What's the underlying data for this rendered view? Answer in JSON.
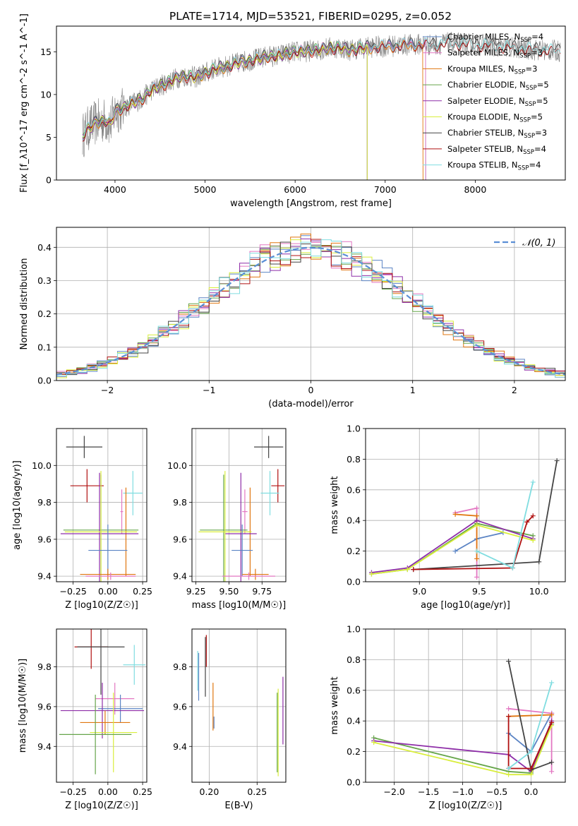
{
  "figure_title": "PLATE=1714, MJD=53521, FIBERID=0295, z=0.052",
  "colors": {
    "Chabrier MILES": "#5b84c4",
    "Salpeter MILES": "#e377c2",
    "Kroupa MILES": "#e0760f",
    "Chabrier ELODIE": "#66a54a",
    "Salpeter ELODIE": "#8e2ea8",
    "Kroupa ELODIE": "#d9ee3c",
    "Chabrier STELIB": "#444444",
    "Salpeter STELIB": "#b01010",
    "Kroupa STELIB": "#80dde0"
  },
  "chart_data": [
    {
      "id": "spectrum",
      "type": "line",
      "title": "PLATE=1714, MJD=53521, FIBERID=0295, z=0.052",
      "xlabel": "wavelength [Angstrom, rest frame]",
      "ylabel": "Flux [f_λ10^-17 erg cm^-2 s^-1 A^-1]",
      "xlim": [
        3350,
        9000
      ],
      "ylim": [
        0,
        18
      ],
      "xticks": [
        4000,
        5000,
        6000,
        7000,
        8000
      ],
      "yticks": [
        0,
        5,
        10,
        15
      ],
      "grid": false,
      "legend": "top-right",
      "data_series": {
        "name": "",
        "color": "#808080",
        "x": [
          3640,
          3700,
          3800,
          3900,
          3950,
          4000,
          4100,
          4200,
          4300,
          4400,
          4500,
          4600,
          4700,
          4800,
          4900,
          5000,
          5100,
          5200,
          5300,
          5400,
          5500,
          5600,
          5700,
          5800,
          5900,
          6000,
          6100,
          6200,
          6300,
          6400,
          6500,
          6600,
          6700,
          6800,
          6900,
          7000,
          7100,
          7200,
          7300,
          7400,
          7500,
          7600,
          7700,
          7800,
          7900,
          8000,
          8100,
          8200,
          8300,
          8400,
          8500,
          8600,
          8700,
          8800,
          8900
        ],
        "y": [
          5.2,
          6.0,
          6.8,
          7.0,
          6.5,
          8.0,
          8.5,
          9.0,
          9.5,
          10.5,
          11.0,
          11.5,
          12.0,
          12.2,
          12.0,
          12.5,
          13.0,
          13.2,
          13.5,
          13.8,
          14.0,
          14.2,
          14.5,
          14.5,
          14.8,
          15.0,
          15.0,
          15.2,
          15.3,
          15.5,
          15.5,
          15.2,
          15.4,
          15.5,
          15.6,
          15.6,
          15.7,
          15.8,
          15.8,
          15.9,
          15.8,
          15.9,
          16.0,
          16.0,
          15.9,
          15.8,
          15.8,
          15.7,
          15.6,
          15.5,
          15.4,
          15.3,
          15.2,
          15.2,
          15.1
        ]
      },
      "series": [
        {
          "name": "Chabrier MILES, N_SSP=4",
          "label_main": "Chabrier MILES, N",
          "label_sub": "SSP",
          "label_tail": "=4",
          "color": "#5b84c4",
          "offset": 0.0,
          "end": 7450
        },
        {
          "name": "Salpeter MILES, N_SSP=3",
          "label_main": "Salpeter MILES, N",
          "label_sub": "SSP",
          "label_tail": "=3",
          "color": "#e377c2",
          "offset": 0.1,
          "end": 7450
        },
        {
          "name": "Kroupa MILES, N_SSP=3",
          "label_main": "Kroupa MILES, N",
          "label_sub": "SSP",
          "label_tail": "=3",
          "color": "#e0760f",
          "offset": -0.1,
          "end": 7420
        },
        {
          "name": "Chabrier ELODIE, N_SSP=5",
          "label_main": "Chabrier ELODIE, N",
          "label_sub": "SSP",
          "label_tail": "=5",
          "color": "#66a54a",
          "offset": 0.05,
          "end": 6800
        },
        {
          "name": "Salpeter ELODIE, N_SSP=5",
          "label_main": "Salpeter ELODIE, N",
          "label_sub": "SSP",
          "label_tail": "=5",
          "color": "#8e2ea8",
          "offset": -0.05,
          "end": 6800
        },
        {
          "name": "Kroupa ELODIE, N_SSP=5",
          "label_main": "Kroupa ELODIE, N",
          "label_sub": "SSP",
          "label_tail": "=5",
          "color": "#d9ee3c",
          "offset": 0.0,
          "end": 6800
        },
        {
          "name": "Chabrier STELIB, N_SSP=3",
          "label_main": "Chabrier STELIB, N",
          "label_sub": "SSP",
          "label_tail": "=3",
          "color": "#444444",
          "offset": 0.15,
          "end": 8950
        },
        {
          "name": "Salpeter STELIB, N_SSP=4",
          "label_main": "Salpeter STELIB, N",
          "label_sub": "SSP",
          "label_tail": "=4",
          "color": "#b01010",
          "offset": -0.15,
          "end": 8950
        },
        {
          "name": "Kroupa STELIB, N_SSP=4",
          "label_main": "Kroupa STELIB, N",
          "label_sub": "SSP",
          "label_tail": "=4",
          "color": "#80dde0",
          "offset": 0.1,
          "end": 8950
        }
      ]
    },
    {
      "id": "residuals",
      "type": "line",
      "xlabel": "(data-model)/error",
      "ylabel": "Normed distribution",
      "xlim": [
        -2.5,
        2.5
      ],
      "ylim": [
        0,
        0.46
      ],
      "xticks": [
        -2,
        -1,
        0,
        1,
        2
      ],
      "yticks": [
        0.0,
        0.1,
        0.2,
        0.3,
        0.4
      ],
      "grid": true,
      "legend": "top-right",
      "legend_label": "𝒩(0, 1)",
      "gaussian": {
        "mean": 0,
        "sigma": 1,
        "color": "#5b8fd6"
      },
      "bin_width": 0.1
    },
    {
      "id": "age_vs_Z",
      "type": "scatter",
      "xlabel": "Z [log10(Z/Z☉)]",
      "ylabel": "age  [log10(age/yr)]",
      "xlim": [
        -0.37,
        0.28
      ],
      "ylim": [
        9.37,
        10.2
      ],
      "xticks": [
        -0.25,
        0.0,
        0.25
      ],
      "yticks": [
        9.4,
        9.6,
        9.8,
        10.0
      ],
      "grid": true,
      "errorbars": [
        {
          "series": "Chabrier STELIB",
          "x": -0.17,
          "xerr": 0.13,
          "y": 10.1,
          "yerr": 0.06
        },
        {
          "series": "Salpeter STELIB",
          "x": -0.15,
          "xerr": 0.12,
          "y": 9.89,
          "yerr": 0.09
        },
        {
          "series": "Kroupa STELIB",
          "x": 0.18,
          "xerr": 0.07,
          "y": 9.85,
          "yerr": 0.12
        },
        {
          "series": "Salpeter MILES",
          "x": 0.1,
          "xerr": 0.01,
          "y": 9.75,
          "yerr": 0.12
        },
        {
          "series": "Kroupa MILES",
          "x": 0.13,
          "xerr": 0.01,
          "y": 9.64,
          "yerr": 0.24
        },
        {
          "series": "Chabrier ELODIE",
          "x": -0.05,
          "xerr": 0.27,
          "y": 9.65,
          "yerr": 0.3
        },
        {
          "series": "Salpeter ELODIE",
          "x": -0.06,
          "xerr": 0.28,
          "y": 9.63,
          "yerr": 0.33
        },
        {
          "series": "Kroupa ELODIE",
          "x": -0.05,
          "xerr": 0.26,
          "y": 9.64,
          "yerr": 0.33
        },
        {
          "series": "Chabrier MILES",
          "x": 0.0,
          "xerr": 0.14,
          "y": 9.54,
          "yerr": 0.14
        },
        {
          "series": "Kroupa MILES",
          "x": 0.0,
          "xerr": 0.2,
          "y": 9.41,
          "yerr": 0.03
        },
        {
          "series": "Salpeter MILES",
          "x": 0.02,
          "xerr": 0.18,
          "y": 9.4,
          "yerr": 0.02
        }
      ]
    },
    {
      "id": "age_vs_mass",
      "type": "scatter",
      "xlabel": "mass [log10(M/M☉)]",
      "ylabel": "",
      "xlim": [
        9.22,
        9.93
      ],
      "ylim": [
        9.37,
        10.2
      ],
      "xticks": [
        9.25,
        9.5,
        9.75
      ],
      "yticks": [
        9.4,
        9.6,
        9.8,
        10.0
      ],
      "grid": true,
      "errorbars": [
        {
          "series": "Chabrier STELIB",
          "x": 9.8,
          "xerr": 0.11,
          "y": 10.1,
          "yerr": 0.06
        },
        {
          "series": "Salpeter STELIB",
          "x": 9.87,
          "xerr": 0.05,
          "y": 9.89,
          "yerr": 0.09
        },
        {
          "series": "Kroupa STELIB",
          "x": 9.81,
          "xerr": 0.07,
          "y": 9.85,
          "yerr": 0.12
        },
        {
          "series": "Salpeter MILES",
          "x": 9.62,
          "xerr": 0.02,
          "y": 9.75,
          "yerr": 0.12
        },
        {
          "series": "Kroupa MILES",
          "x": 9.66,
          "xerr": 0.01,
          "y": 9.64,
          "yerr": 0.24
        },
        {
          "series": "Chabrier ELODIE",
          "x": 9.46,
          "xerr": 0.18,
          "y": 9.65,
          "yerr": 0.3
        },
        {
          "series": "Salpeter ELODIE",
          "x": 9.59,
          "xerr": 0.12,
          "y": 9.63,
          "yerr": 0.33
        },
        {
          "series": "Kroupa ELODIE",
          "x": 9.47,
          "xerr": 0.2,
          "y": 9.64,
          "yerr": 0.33
        },
        {
          "series": "Chabrier MILES",
          "x": 9.6,
          "xerr": 0.08,
          "y": 9.54,
          "yerr": 0.14
        },
        {
          "series": "Kroupa MILES",
          "x": 9.7,
          "xerr": 0.1,
          "y": 9.41,
          "yerr": 0.03
        },
        {
          "series": "Salpeter MILES",
          "x": 9.65,
          "xerr": 0.2,
          "y": 9.4,
          "yerr": 0.02
        }
      ]
    },
    {
      "id": "weight_vs_age",
      "type": "line",
      "xlabel": "age  [log10(age/yr)]",
      "ylabel": "mass weight",
      "xlim": [
        8.55,
        10.22
      ],
      "ylim": [
        0,
        1
      ],
      "xticks": [
        9.0,
        9.5,
        10.0
      ],
      "yticks": [
        0.0,
        0.2,
        0.4,
        0.6,
        0.8,
        1.0
      ],
      "grid": true,
      "series": [
        {
          "name": "Chabrier MILES",
          "x": [
            9.3,
            9.48,
            9.7
          ],
          "y": [
            0.2,
            0.28,
            0.32
          ]
        },
        {
          "name": "Salpeter MILES",
          "x": [
            9.3,
            9.48,
            9.48
          ],
          "y": [
            0.45,
            0.48,
            0.03
          ]
        },
        {
          "name": "Kroupa MILES",
          "x": [
            9.3,
            9.48,
            9.48
          ],
          "y": [
            0.44,
            0.43,
            0.15
          ]
        },
        {
          "name": "Chabrier ELODIE",
          "x": [
            8.6,
            8.9,
            9.48,
            9.95
          ],
          "y": [
            0.05,
            0.08,
            0.38,
            0.3
          ]
        },
        {
          "name": "Salpeter ELODIE",
          "x": [
            8.6,
            8.9,
            9.48,
            9.95
          ],
          "y": [
            0.06,
            0.09,
            0.4,
            0.28
          ]
        },
        {
          "name": "Kroupa ELODIE",
          "x": [
            8.6,
            8.9,
            9.48,
            9.95
          ],
          "y": [
            0.05,
            0.08,
            0.37,
            0.27
          ]
        },
        {
          "name": "Chabrier STELIB",
          "x": [
            8.95,
            10.0,
            10.15
          ],
          "y": [
            0.08,
            0.13,
            0.79
          ]
        },
        {
          "name": "Salpeter STELIB",
          "x": [
            8.95,
            9.78,
            9.9,
            9.95
          ],
          "y": [
            0.08,
            0.09,
            0.39,
            0.43
          ]
        },
        {
          "name": "Kroupa STELIB",
          "x": [
            9.48,
            9.78,
            9.95
          ],
          "y": [
            0.2,
            0.09,
            0.65
          ]
        }
      ]
    },
    {
      "id": "mass_vs_Z",
      "type": "scatter",
      "xlabel": "Z [log10(Z/Z☉)]",
      "ylabel": "mass [log10(M/M☉)]",
      "xlim": [
        -0.37,
        0.28
      ],
      "ylim": [
        9.22,
        9.99
      ],
      "xticks": [
        -0.25,
        0.0,
        0.25
      ],
      "yticks": [
        9.4,
        9.6,
        9.8
      ],
      "grid": true,
      "errorbars": [
        {
          "series": "Salpeter STELIB",
          "x": -0.12,
          "xerr": 0.12,
          "y": 9.9,
          "yerr": 0.11
        },
        {
          "series": "Chabrier STELIB",
          "x": -0.05,
          "xerr": 0.17,
          "y": 9.9,
          "yerr": 0.24
        },
        {
          "series": "Kroupa STELIB",
          "x": 0.19,
          "xerr": 0.08,
          "y": 9.81,
          "yerr": 0.1
        },
        {
          "series": "Salpeter MILES",
          "x": 0.05,
          "xerr": 0.14,
          "y": 9.64,
          "yerr": 0.08
        },
        {
          "series": "Chabrier MILES",
          "x": 0.09,
          "xerr": 0.16,
          "y": 9.59,
          "yerr": 0.07
        },
        {
          "series": "Salpeter ELODIE",
          "x": -0.04,
          "xerr": 0.3,
          "y": 9.58,
          "yerr": 0.14
        },
        {
          "series": "Kroupa MILES",
          "x": -0.02,
          "xerr": 0.18,
          "y": 9.52,
          "yerr": 0.06
        },
        {
          "series": "Kroupa ELODIE",
          "x": 0.04,
          "xerr": 0.17,
          "y": 9.47,
          "yerr": 0.2
        },
        {
          "series": "Chabrier ELODIE",
          "x": -0.09,
          "xerr": 0.26,
          "y": 9.46,
          "yerr": 0.2
        }
      ]
    },
    {
      "id": "mass_vs_ebv",
      "type": "scatter",
      "xlabel": "E(B-V)",
      "ylabel": "",
      "xlim": [
        0.182,
        0.28
      ],
      "ylim": [
        9.22,
        9.99
      ],
      "xticks": [
        0.2,
        0.25
      ],
      "yticks": [
        9.4,
        9.6,
        9.8
      ],
      "grid": true,
      "errorbars": [
        {
          "series": "Kroupa STELIB",
          "x": 0.188,
          "xerr": 0,
          "y": 9.78,
          "yerr": 0.1
        },
        {
          "series": "Chabrier MILES",
          "x": 0.189,
          "xerr": 0,
          "y": 9.75,
          "yerr": 0.12
        },
        {
          "series": "Chabrier STELIB",
          "x": 0.196,
          "xerr": 0,
          "y": 9.8,
          "yerr": 0.15
        },
        {
          "series": "Salpeter STELIB",
          "x": 0.197,
          "xerr": 0,
          "y": 9.88,
          "yerr": 0.08
        },
        {
          "series": "Kroupa MILES",
          "x": 0.204,
          "xerr": 0,
          "y": 9.6,
          "yerr": 0.12
        },
        {
          "series": "Chabrier MILES",
          "x": 0.205,
          "xerr": 0,
          "y": 9.52,
          "yerr": 0.03
        },
        {
          "series": "Chabrier ELODIE",
          "x": 0.271,
          "xerr": 0,
          "y": 9.47,
          "yerr": 0.2
        },
        {
          "series": "Kroupa ELODIE",
          "x": 0.272,
          "xerr": 0,
          "y": 9.47,
          "yerr": 0.22
        },
        {
          "series": "Salpeter ELODIE",
          "x": 0.277,
          "xerr": 0,
          "y": 9.58,
          "yerr": 0.17
        }
      ]
    },
    {
      "id": "weight_vs_Z",
      "type": "line",
      "xlabel": "Z [log10(Z/Z☉)]",
      "ylabel": "mass weight",
      "xlim": [
        -2.42,
        0.5
      ],
      "ylim": [
        0,
        1
      ],
      "xticks": [
        -2.0,
        -1.5,
        -1.0,
        -0.5,
        0.0
      ],
      "yticks": [
        0.0,
        0.2,
        0.4,
        0.6,
        0.8,
        1.0
      ],
      "grid": true,
      "series": [
        {
          "name": "Chabrier MILES",
          "x": [
            -0.33,
            0.0,
            0.3
          ],
          "y": [
            0.32,
            0.2,
            0.45
          ]
        },
        {
          "name": "Salpeter MILES",
          "x": [
            -0.33,
            0.3,
            0.3
          ],
          "y": [
            0.48,
            0.45,
            0.07
          ]
        },
        {
          "name": "Kroupa MILES",
          "x": [
            -0.33,
            0.3
          ],
          "y": [
            0.43,
            0.44
          ]
        },
        {
          "name": "Chabrier ELODIE",
          "x": [
            -2.3,
            -0.33,
            0.0,
            0.3
          ],
          "y": [
            0.29,
            0.07,
            0.06,
            0.38
          ]
        },
        {
          "name": "Salpeter ELODIE",
          "x": [
            -2.3,
            -0.33,
            0.0,
            0.3
          ],
          "y": [
            0.27,
            0.18,
            0.07,
            0.4
          ]
        },
        {
          "name": "Kroupa ELODIE",
          "x": [
            -2.3,
            -0.33,
            0.0,
            0.3
          ],
          "y": [
            0.26,
            0.05,
            0.05,
            0.37
          ]
        },
        {
          "name": "Chabrier STELIB",
          "x": [
            -0.33,
            0.0,
            0.3
          ],
          "y": [
            0.79,
            0.08,
            0.13
          ]
        },
        {
          "name": "Salpeter STELIB",
          "x": [
            -0.33,
            -0.33,
            0.0,
            0.3
          ],
          "y": [
            0.43,
            0.09,
            0.09,
            0.39
          ]
        },
        {
          "name": "Kroupa STELIB",
          "x": [
            -0.33,
            0.0,
            0.3
          ],
          "y": [
            0.09,
            0.2,
            0.65
          ]
        }
      ]
    }
  ]
}
